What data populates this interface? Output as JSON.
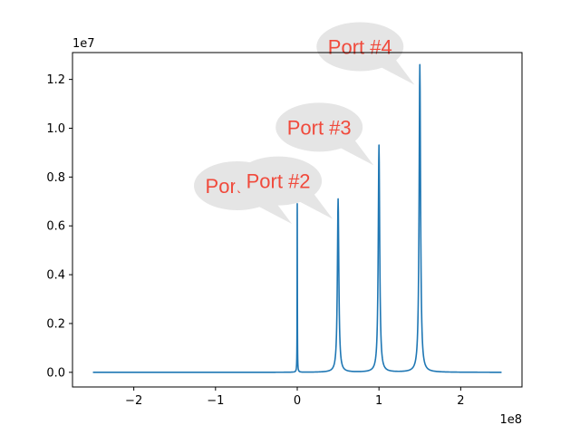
{
  "chart_data": {
    "type": "line",
    "title": "",
    "xlabel": "",
    "ylabel": "",
    "x_offset_label": "1e8",
    "y_offset_label": "1e7",
    "xlim": [
      -2.75,
      2.75
    ],
    "ylim": [
      -0.06,
      1.31
    ],
    "x_ticks": [
      -2,
      -1,
      0,
      1,
      2
    ],
    "x_tick_labels": [
      "−2",
      "−1",
      "0",
      "1",
      "2"
    ],
    "y_ticks": [
      0.0,
      0.2,
      0.4,
      0.6,
      0.8,
      1.0,
      1.2
    ],
    "y_tick_labels": [
      "0.0",
      "0.2",
      "0.4",
      "0.6",
      "0.8",
      "1.0",
      "1.2"
    ],
    "x_range": [
      -2.5,
      2.5
    ],
    "baseline": 0.0,
    "grid": false,
    "series_color": "#1f77b4",
    "peaks": [
      {
        "label": "Port #1",
        "x": 0.0,
        "y": 0.69,
        "width": 0.005
      },
      {
        "label": "Port #2",
        "x": 0.5,
        "y": 0.71,
        "width": 0.03
      },
      {
        "label": "Port #3",
        "x": 1.0,
        "y": 0.93,
        "width": 0.03
      },
      {
        "label": "Port #4",
        "x": 1.5,
        "y": 1.26,
        "width": 0.03
      }
    ]
  },
  "colors": {
    "callout_fill": "#e5e5e5",
    "callout_text": "#f04a3c",
    "axis": "#000000"
  }
}
